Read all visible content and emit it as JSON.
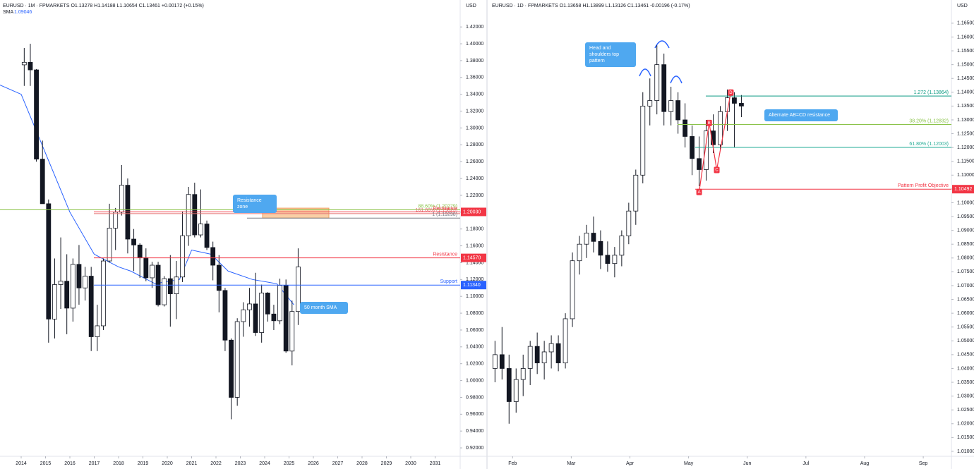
{
  "chart_data": [
    {
      "type": "candlestick",
      "header": "EURUSD · 1M · FPMARKETS O1.13278 H1.14188 L1.10654 C1.13461 +0.00172 (+0.15%)",
      "unit": "USD",
      "xlim": [
        2013.13,
        2032.03
      ],
      "ylim": [
        0.91,
        1.452
      ],
      "xticks": [
        2014,
        2015,
        2016,
        2017,
        2018,
        2019,
        2020,
        2021,
        2022,
        2023,
        2024,
        2025,
        2026,
        2027,
        2028,
        2029,
        2030,
        2031
      ],
      "yticks": [
        {
          "value": 0.92,
          "label": "0.92000"
        },
        {
          "value": 0.94,
          "label": "0.94000"
        },
        {
          "value": 0.96,
          "label": "0.96000"
        },
        {
          "value": 0.98,
          "label": "0.98000"
        },
        {
          "value": 1.0,
          "label": "1.00000"
        },
        {
          "value": 1.02,
          "label": "1.02000"
        },
        {
          "value": 1.04,
          "label": "1.04000"
        },
        {
          "value": 1.06,
          "label": "1.06000"
        },
        {
          "value": 1.08,
          "label": "1.08000"
        },
        {
          "value": 1.1,
          "label": "1.10000"
        },
        {
          "value": 1.12,
          "label": "1.12000"
        },
        {
          "value": 1.14,
          "label": "1.14000"
        },
        {
          "value": 1.16,
          "label": "1.16000"
        },
        {
          "value": 1.18,
          "label": "1.18000"
        },
        {
          "value": 1.2,
          "label": "1.20000"
        },
        {
          "value": 1.22,
          "label": "1.22000"
        },
        {
          "value": 1.24,
          "label": "1.24000"
        },
        {
          "value": 1.26,
          "label": "1.26000"
        },
        {
          "value": 1.28,
          "label": "1.28000"
        },
        {
          "value": 1.3,
          "label": "1.30000"
        },
        {
          "value": 1.32,
          "label": "1.32000"
        },
        {
          "value": 1.34,
          "label": "1.34000"
        },
        {
          "value": 1.36,
          "label": "1.36000"
        },
        {
          "value": 1.38,
          "label": "1.38000"
        },
        {
          "value": 1.4,
          "label": "1.40000"
        },
        {
          "value": 1.42,
          "label": "1.42000"
        }
      ],
      "up_color": "#ffffff",
      "down_color": "#131722",
      "x": [
        2014.125,
        2014.375,
        2014.625,
        2014.875,
        2015.125,
        2015.375,
        2015.625,
        2015.875,
        2016.125,
        2016.375,
        2016.625,
        2016.875,
        2017.125,
        2017.375,
        2017.625,
        2017.875,
        2018.125,
        2018.375,
        2018.625,
        2018.875,
        2019.125,
        2019.375,
        2019.625,
        2019.875,
        2020.125,
        2020.375,
        2020.625,
        2020.875,
        2021.125,
        2021.375,
        2021.625,
        2021.875,
        2022.125,
        2022.375,
        2022.625,
        2022.875,
        2023.125,
        2023.375,
        2023.625,
        2023.875,
        2024.125,
        2024.375,
        2024.625,
        2024.875,
        2025.125,
        2025.375
      ],
      "open": [
        1.375,
        1.378,
        1.369,
        1.263,
        1.21,
        1.073,
        1.114,
        1.118,
        1.086,
        1.138,
        1.11,
        1.124,
        1.052,
        1.065,
        1.142,
        1.181,
        1.2,
        1.232,
        1.168,
        1.161,
        1.146,
        1.122,
        1.137,
        1.09,
        1.121,
        1.103,
        1.123,
        1.172,
        1.221,
        1.173,
        1.186,
        1.158,
        1.137,
        1.107,
        1.048,
        0.98,
        1.07,
        1.084,
        1.091,
        1.057,
        1.104,
        1.079,
        1.071,
        1.113,
        1.035,
        1.082
      ],
      "high": [
        1.395,
        1.4,
        1.37,
        1.285,
        1.215,
        1.145,
        1.17,
        1.15,
        1.145,
        1.161,
        1.135,
        1.135,
        1.09,
        1.145,
        1.21,
        1.205,
        1.256,
        1.24,
        1.18,
        1.163,
        1.157,
        1.141,
        1.141,
        1.124,
        1.149,
        1.142,
        1.201,
        1.23,
        1.235,
        1.227,
        1.19,
        1.165,
        1.149,
        1.11,
        1.05,
        1.074,
        1.093,
        1.11,
        1.128,
        1.114,
        1.105,
        1.09,
        1.121,
        1.12,
        1.095,
        1.157
      ],
      "low": [
        1.35,
        1.35,
        1.26,
        1.21,
        1.045,
        1.05,
        1.085,
        1.055,
        1.07,
        1.09,
        1.095,
        1.035,
        1.035,
        1.06,
        1.14,
        1.155,
        1.196,
        1.151,
        1.13,
        1.122,
        1.118,
        1.11,
        1.088,
        1.088,
        1.064,
        1.073,
        1.117,
        1.16,
        1.17,
        1.17,
        1.155,
        1.119,
        1.081,
        1.035,
        0.954,
        0.97,
        1.052,
        1.064,
        1.053,
        1.045,
        1.07,
        1.06,
        1.067,
        1.033,
        1.018,
        1.066
      ],
      "close": [
        1.378,
        1.369,
        1.263,
        1.21,
        1.073,
        1.114,
        1.118,
        1.086,
        1.138,
        1.11,
        1.124,
        1.052,
        1.065,
        1.142,
        1.181,
        1.2,
        1.232,
        1.168,
        1.161,
        1.146,
        1.122,
        1.137,
        1.09,
        1.121,
        1.103,
        1.123,
        1.172,
        1.221,
        1.173,
        1.186,
        1.158,
        1.137,
        1.107,
        1.048,
        0.98,
        1.07,
        1.084,
        1.091,
        1.057,
        1.104,
        1.079,
        1.071,
        1.113,
        1.035,
        1.082,
        1.135
      ],
      "sma": {
        "name": "SMA",
        "label": "1.09046",
        "color": "#2962ff",
        "x": [
          2013.13,
          2014.0,
          2015.0,
          2016.0,
          2017.0,
          2018.0,
          2018.5,
          2019.5,
          2020.5,
          2021.0,
          2021.8,
          2022.5,
          2023.5,
          2024.5,
          2025.2
        ],
        "values": [
          1.351,
          1.34,
          1.27,
          1.2,
          1.15,
          1.135,
          1.13,
          1.115,
          1.12,
          1.155,
          1.15,
          1.13,
          1.12,
          1.115,
          1.09
        ]
      },
      "levels": [
        {
          "text": "88.60% (1.20279)",
          "value": 1.20279,
          "color": "#8bc34a"
        },
        {
          "text": "161.80% (1.19823)",
          "value": 1.19823,
          "color": "#e57373"
        },
        {
          "text": "Resistance",
          "value": 1.2003,
          "tag": "1.20030",
          "color": "#f23645"
        },
        {
          "text": "1 (1.19298)",
          "value": 1.19298,
          "color": "#787b86"
        },
        {
          "text": "Resistance",
          "value": 1.1457,
          "tag": "1.14570",
          "color": "#f23645"
        },
        {
          "text": "Support",
          "value": 1.1134,
          "tag": "1.11340",
          "color": "#2962ff"
        }
      ],
      "zones": [
        {
          "top": 1.2048,
          "bottom": 1.193,
          "color": "#f7c28f"
        }
      ],
      "callouts": [
        {
          "text": "Resistance zone"
        },
        {
          "text": "50 month SMA"
        }
      ]
    },
    {
      "type": "candlestick",
      "header": "EURUSD · 1D · FPMARKETS O1.13658 H1.13899 L1.13126 C1.13461 -0.00196 (-0.17%)",
      "unit": "USD",
      "xlim": [
        1.6,
        9.48
      ],
      "ylim": [
        1.0082,
        1.1734
      ],
      "xticks": [
        {
          "value": 2,
          "label": "Feb"
        },
        {
          "value": 3,
          "label": "Mar"
        },
        {
          "value": 4,
          "label": "Apr"
        },
        {
          "value": 5,
          "label": "May"
        },
        {
          "value": 6,
          "label": "Jun"
        },
        {
          "value": 7,
          "label": "Jul"
        },
        {
          "value": 8,
          "label": "Aug"
        },
        {
          "value": 9,
          "label": "Sep"
        }
      ],
      "yticks": [
        {
          "value": 1.01,
          "label": "1.01000"
        },
        {
          "value": 1.015,
          "label": "1.01500"
        },
        {
          "value": 1.02,
          "label": "1.02000"
        },
        {
          "value": 1.025,
          "label": "1.02500"
        },
        {
          "value": 1.03,
          "label": "1.03000"
        },
        {
          "value": 1.035,
          "label": "1.03500"
        },
        {
          "value": 1.04,
          "label": "1.04000"
        },
        {
          "value": 1.045,
          "label": "1.04500"
        },
        {
          "value": 1.05,
          "label": "1.05000"
        },
        {
          "value": 1.055,
          "label": "1.05500"
        },
        {
          "value": 1.06,
          "label": "1.06000"
        },
        {
          "value": 1.065,
          "label": "1.06500"
        },
        {
          "value": 1.07,
          "label": "1.07000"
        },
        {
          "value": 1.075,
          "label": "1.07500"
        },
        {
          "value": 1.08,
          "label": "1.08000"
        },
        {
          "value": 1.085,
          "label": "1.08500"
        },
        {
          "value": 1.09,
          "label": "1.09000"
        },
        {
          "value": 1.095,
          "label": "1.09500"
        },
        {
          "value": 1.1,
          "label": "1.10000"
        },
        {
          "value": 1.105,
          "label": "1.10500"
        },
        {
          "value": 1.11,
          "label": "1.11000"
        },
        {
          "value": 1.115,
          "label": "1.11500"
        },
        {
          "value": 1.12,
          "label": "1.12000"
        },
        {
          "value": 1.125,
          "label": "1.12500"
        },
        {
          "value": 1.13,
          "label": "1.13000"
        },
        {
          "value": 1.135,
          "label": "1.13500"
        },
        {
          "value": 1.14,
          "label": "1.14000"
        },
        {
          "value": 1.145,
          "label": "1.14500"
        },
        {
          "value": 1.15,
          "label": "1.15000"
        },
        {
          "value": 1.155,
          "label": "1.15500"
        },
        {
          "value": 1.16,
          "label": "1.16000"
        },
        {
          "value": 1.165,
          "label": "1.16500"
        }
      ],
      "up_color": "#ffffff",
      "down_color": "#131722",
      "x": [
        1.7,
        1.82,
        1.94,
        2.06,
        2.18,
        2.3,
        2.42,
        2.54,
        2.66,
        2.78,
        2.9,
        3.02,
        3.14,
        3.26,
        3.38,
        3.5,
        3.62,
        3.74,
        3.86,
        3.98,
        4.1,
        4.22,
        4.34,
        4.46,
        4.58,
        4.7,
        4.82,
        4.94,
        5.06,
        5.18,
        5.3,
        5.42,
        5.54,
        5.66,
        5.78,
        5.9
      ],
      "open": [
        1.04,
        1.045,
        1.04,
        1.028,
        1.036,
        1.04,
        1.048,
        1.042,
        1.046,
        1.049,
        1.042,
        1.058,
        1.079,
        1.085,
        1.089,
        1.086,
        1.081,
        1.078,
        1.081,
        1.088,
        1.097,
        1.11,
        1.135,
        1.137,
        1.15,
        1.133,
        1.137,
        1.13,
        1.124,
        1.116,
        1.112,
        1.126,
        1.121,
        1.133,
        1.138,
        1.136
      ],
      "high": [
        1.05,
        1.055,
        1.045,
        1.04,
        1.045,
        1.05,
        1.053,
        1.05,
        1.052,
        1.052,
        1.06,
        1.082,
        1.088,
        1.092,
        1.095,
        1.09,
        1.086,
        1.084,
        1.09,
        1.1,
        1.112,
        1.14,
        1.145,
        1.157,
        1.154,
        1.142,
        1.14,
        1.136,
        1.128,
        1.124,
        1.13,
        1.132,
        1.135,
        1.141,
        1.14,
        1.139
      ],
      "low": [
        1.035,
        1.036,
        1.02,
        1.024,
        1.03,
        1.034,
        1.038,
        1.036,
        1.04,
        1.039,
        1.04,
        1.055,
        1.074,
        1.08,
        1.082,
        1.076,
        1.075,
        1.073,
        1.077,
        1.085,
        1.092,
        1.107,
        1.128,
        1.132,
        1.128,
        1.128,
        1.125,
        1.12,
        1.11,
        1.106,
        1.108,
        1.118,
        1.119,
        1.126,
        1.12,
        1.131
      ],
      "close": [
        1.045,
        1.04,
        1.028,
        1.036,
        1.04,
        1.048,
        1.042,
        1.046,
        1.049,
        1.042,
        1.058,
        1.079,
        1.085,
        1.089,
        1.086,
        1.081,
        1.078,
        1.081,
        1.088,
        1.097,
        1.11,
        1.135,
        1.137,
        1.15,
        1.133,
        1.137,
        1.13,
        1.124,
        1.116,
        1.112,
        1.126,
        1.121,
        1.133,
        1.138,
        1.136,
        1.135
      ],
      "levels": [
        {
          "text": "1.272 (1.13864)",
          "value": 1.13864,
          "color": "#089981"
        },
        {
          "text": "38.20% (1.12832)",
          "value": 1.12832,
          "color": "#8bc34a"
        },
        {
          "text": "61.80% (1.12003)",
          "value": 1.12003,
          "color": "#22ab94"
        },
        {
          "text": "Pattern Profit Objective",
          "value": 1.10492,
          "tag": "1.10492",
          "color": "#f23645"
        }
      ],
      "points": [
        {
          "label": "A",
          "x": 5.18,
          "value": 1.104
        },
        {
          "label": "B",
          "x": 5.35,
          "value": 1.129
        },
        {
          "label": "C",
          "x": 5.48,
          "value": 1.112
        },
        {
          "label": "D",
          "x": 5.72,
          "value": 1.14
        }
      ],
      "callouts": [
        {
          "text": "Head and shoulders top pattern"
        },
        {
          "text": "Alternate AB=CD resistance"
        }
      ]
    }
  ]
}
